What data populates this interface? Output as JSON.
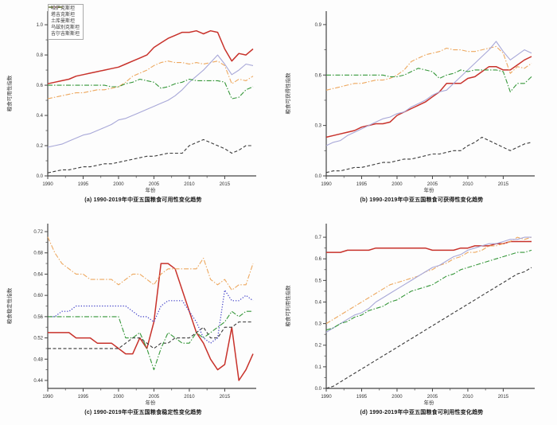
{
  "page": {
    "background": "#fdfdfd"
  },
  "colors": {
    "kazakhstan_red": "#c8322b",
    "tajikistan_black": "#3a3a3a",
    "turkmenistan_orange": "#eda85f",
    "uzbekistan_lavender": "#a8a8d8",
    "uzbekistan_dotted_blue": "#4040c8",
    "kyrgyzstan_green": "#36973a"
  },
  "legend": {
    "entries": [
      {
        "label": "哈萨克斯坦",
        "color": "#c8322b",
        "dash": "solid",
        "width": 1.5
      },
      {
        "label": "塔吉克斯坦",
        "color": "#3a3a3a",
        "dash": "dashed",
        "width": 1.1
      },
      {
        "label": "土库曼斯坦",
        "color": "#eda85f",
        "dash": "dashdot",
        "width": 1.1
      },
      {
        "label": "乌兹别克斯坦",
        "color": "#a8a8d8",
        "dash": "solid",
        "width": 1.1
      },
      {
        "label": "吉尔吉斯斯坦",
        "color": "#36973a",
        "dash": "dashdot",
        "width": 1.1
      }
    ]
  },
  "chart_data": [
    {
      "type": "line",
      "caption": "(a) 1990-2019年中亚五国粮食可用性变化趋势",
      "ylabel": "粮食可用性指数",
      "xlabel": "年份",
      "x_start": 1990,
      "x_end": 2019,
      "xticks": [
        1990,
        1995,
        2000,
        2005,
        2010,
        2015
      ],
      "yticks": [
        0.0,
        0.2,
        0.4,
        0.6,
        0.8,
        1.0
      ],
      "ytick_labels": [
        "0.0",
        "0.2",
        "0.4",
        "0.6",
        "0.8",
        "1.0"
      ],
      "axis_ylim": [
        0,
        1.09
      ],
      "legend_position": "upper-left",
      "grid": false,
      "series": [
        {
          "name": "哈萨克斯坦",
          "color": "#c8322b",
          "dash": "solid",
          "width": 1.5,
          "values": [
            0.61,
            0.62,
            0.63,
            0.64,
            0.66,
            0.67,
            0.68,
            0.69,
            0.7,
            0.71,
            0.72,
            0.74,
            0.76,
            0.78,
            0.8,
            0.85,
            0.88,
            0.91,
            0.93,
            0.95,
            0.95,
            0.96,
            0.94,
            0.96,
            0.95,
            0.84,
            0.76,
            0.81,
            0.8,
            0.84
          ]
        },
        {
          "name": "塔吉克斯坦",
          "color": "#3a3a3a",
          "dash": "dashed",
          "width": 1.1,
          "values": [
            0.02,
            0.03,
            0.04,
            0.04,
            0.05,
            0.06,
            0.06,
            0.07,
            0.08,
            0.08,
            0.09,
            0.1,
            0.11,
            0.12,
            0.13,
            0.13,
            0.14,
            0.15,
            0.15,
            0.15,
            0.2,
            0.22,
            0.24,
            0.22,
            0.2,
            0.18,
            0.15,
            0.17,
            0.2,
            0.2
          ]
        },
        {
          "name": "土库曼斯坦",
          "color": "#eda85f",
          "dash": "dashdot",
          "width": 1.1,
          "values": [
            0.51,
            0.52,
            0.53,
            0.54,
            0.55,
            0.55,
            0.56,
            0.57,
            0.57,
            0.58,
            0.59,
            0.62,
            0.66,
            0.68,
            0.7,
            0.73,
            0.75,
            0.76,
            0.75,
            0.75,
            0.74,
            0.75,
            0.74,
            0.75,
            0.76,
            0.73,
            0.61,
            0.64,
            0.63,
            0.66
          ]
        },
        {
          "name": "乌兹别克斯坦",
          "color": "#a8a8d8",
          "dash": "solid",
          "width": 1.1,
          "values": [
            0.19,
            0.2,
            0.21,
            0.23,
            0.25,
            0.27,
            0.28,
            0.3,
            0.32,
            0.34,
            0.37,
            0.38,
            0.4,
            0.42,
            0.44,
            0.46,
            0.48,
            0.5,
            0.53,
            0.57,
            0.62,
            0.66,
            0.7,
            0.75,
            0.8,
            0.74,
            0.67,
            0.7,
            0.74,
            0.73
          ]
        },
        {
          "name": "吉尔吉斯斯坦",
          "color": "#36973a",
          "dash": "dashdot",
          "width": 1.1,
          "values": [
            0.6,
            0.6,
            0.6,
            0.6,
            0.6,
            0.6,
            0.6,
            0.6,
            0.6,
            0.59,
            0.59,
            0.61,
            0.62,
            0.64,
            0.63,
            0.62,
            0.58,
            0.59,
            0.61,
            0.62,
            0.64,
            0.63,
            0.63,
            0.63,
            0.63,
            0.62,
            0.51,
            0.52,
            0.57,
            0.59
          ]
        }
      ]
    },
    {
      "type": "line",
      "caption": "(b) 1990-2019年中亚五国粮食可获得性变化趋势",
      "ylabel": "粮食可获得性指数",
      "xlabel": "年份",
      "x_start": 1990,
      "x_end": 2019,
      "xticks": [
        1990,
        1995,
        2000,
        2005,
        2010,
        2015
      ],
      "yticks": [
        0.0,
        0.3,
        0.6,
        0.9
      ],
      "ytick_labels": [
        "0.0",
        "0.3",
        "0.6",
        "0.9"
      ],
      "axis_ylim": [
        0,
        0.98
      ],
      "grid": false,
      "series": [
        {
          "name": "哈萨克斯坦",
          "color": "#c8322b",
          "dash": "solid",
          "width": 1.5,
          "values": [
            0.23,
            0.24,
            0.25,
            0.26,
            0.27,
            0.29,
            0.3,
            0.31,
            0.31,
            0.32,
            0.36,
            0.38,
            0.4,
            0.42,
            0.44,
            0.47,
            0.5,
            0.55,
            0.55,
            0.55,
            0.58,
            0.59,
            0.62,
            0.65,
            0.65,
            0.63,
            0.63,
            0.66,
            0.69,
            0.71
          ]
        },
        {
          "name": "塔吉克斯坦",
          "color": "#3a3a3a",
          "dash": "dashed",
          "width": 1.1,
          "values": [
            0.02,
            0.03,
            0.03,
            0.04,
            0.05,
            0.05,
            0.06,
            0.07,
            0.08,
            0.08,
            0.09,
            0.1,
            0.1,
            0.11,
            0.12,
            0.13,
            0.13,
            0.14,
            0.15,
            0.15,
            0.18,
            0.2,
            0.23,
            0.21,
            0.19,
            0.17,
            0.15,
            0.17,
            0.19,
            0.2
          ]
        },
        {
          "name": "土库曼斯坦",
          "color": "#eda85f",
          "dash": "dashdot",
          "width": 1.1,
          "values": [
            0.51,
            0.52,
            0.53,
            0.54,
            0.55,
            0.55,
            0.56,
            0.57,
            0.57,
            0.58,
            0.6,
            0.63,
            0.68,
            0.7,
            0.72,
            0.73,
            0.74,
            0.76,
            0.75,
            0.75,
            0.74,
            0.74,
            0.75,
            0.76,
            0.77,
            0.73,
            0.61,
            0.65,
            0.64,
            0.67
          ]
        },
        {
          "name": "乌兹别克斯坦",
          "color": "#a8a8d8",
          "dash": "solid",
          "width": 1.1,
          "values": [
            0.18,
            0.2,
            0.21,
            0.24,
            0.26,
            0.28,
            0.3,
            0.32,
            0.34,
            0.35,
            0.37,
            0.38,
            0.41,
            0.43,
            0.45,
            0.48,
            0.5,
            0.51,
            0.55,
            0.59,
            0.63,
            0.67,
            0.71,
            0.75,
            0.8,
            0.74,
            0.69,
            0.72,
            0.75,
            0.73
          ]
        },
        {
          "name": "吉尔吉斯斯坦",
          "color": "#36973a",
          "dash": "dashdot",
          "width": 1.1,
          "values": [
            0.6,
            0.6,
            0.6,
            0.6,
            0.6,
            0.6,
            0.6,
            0.6,
            0.6,
            0.59,
            0.59,
            0.6,
            0.62,
            0.64,
            0.63,
            0.62,
            0.58,
            0.6,
            0.61,
            0.63,
            0.62,
            0.63,
            0.63,
            0.63,
            0.63,
            0.62,
            0.5,
            0.55,
            0.55,
            0.59
          ]
        }
      ]
    },
    {
      "type": "line",
      "caption": "(c) 1990-2019年中亚五国粮食稳定性变化趋势",
      "ylabel": "粮食稳定性指数",
      "xlabel": "年份",
      "x_start": 1990,
      "x_end": 2019,
      "xticks": [
        1990,
        1995,
        2000,
        2005,
        2010,
        2015
      ],
      "yticks": [
        0.44,
        0.48,
        0.52,
        0.56,
        0.6,
        0.64,
        0.68,
        0.72
      ],
      "ytick_labels": [
        "0.44",
        "0.48",
        "0.52",
        "0.56",
        "0.60",
        "0.64",
        "0.68",
        "0.72"
      ],
      "axis_ylim": [
        0.425,
        0.735
      ],
      "grid": false,
      "series": [
        {
          "name": "哈萨克斯坦",
          "color": "#c8322b",
          "dash": "solid",
          "width": 1.5,
          "values": [
            0.53,
            0.53,
            0.53,
            0.53,
            0.52,
            0.52,
            0.52,
            0.51,
            0.51,
            0.51,
            0.5,
            0.49,
            0.49,
            0.52,
            0.5,
            0.55,
            0.66,
            0.66,
            0.65,
            0.61,
            0.57,
            0.53,
            0.51,
            0.48,
            0.46,
            0.47,
            0.54,
            0.44,
            0.46,
            0.49
          ]
        },
        {
          "name": "塔吉克斯坦",
          "color": "#3a3a3a",
          "dash": "dashed",
          "width": 1.1,
          "values": [
            0.5,
            0.5,
            0.5,
            0.5,
            0.5,
            0.5,
            0.5,
            0.5,
            0.5,
            0.5,
            0.5,
            0.51,
            0.52,
            0.52,
            0.51,
            0.5,
            0.51,
            0.51,
            0.52,
            0.52,
            0.52,
            0.53,
            0.54,
            0.52,
            0.52,
            0.54,
            0.54,
            0.55,
            0.55,
            0.55
          ]
        },
        {
          "name": "土库曼斯坦",
          "color": "#eda85f",
          "dash": "dashdot",
          "width": 1.1,
          "values": [
            0.71,
            0.68,
            0.66,
            0.65,
            0.64,
            0.64,
            0.63,
            0.63,
            0.63,
            0.63,
            0.62,
            0.63,
            0.64,
            0.64,
            0.63,
            0.62,
            0.64,
            0.65,
            0.65,
            0.65,
            0.65,
            0.65,
            0.67,
            0.63,
            0.62,
            0.63,
            0.61,
            0.62,
            0.62,
            0.66
          ]
        },
        {
          "name": "乌兹别克斯坦",
          "color": "#4040c8",
          "dash": "dotted",
          "width": 1.2,
          "values": [
            0.56,
            0.56,
            0.57,
            0.57,
            0.58,
            0.58,
            0.58,
            0.58,
            0.58,
            0.58,
            0.58,
            0.58,
            0.57,
            0.56,
            0.56,
            0.55,
            0.58,
            0.59,
            0.59,
            0.59,
            0.57,
            0.55,
            0.52,
            0.51,
            0.52,
            0.61,
            0.59,
            0.59,
            0.6,
            0.59
          ]
        },
        {
          "name": "吉尔吉斯斯坦",
          "color": "#36973a",
          "dash": "dashdot",
          "width": 1.1,
          "values": [
            0.56,
            0.56,
            0.56,
            0.56,
            0.56,
            0.56,
            0.56,
            0.56,
            0.56,
            0.56,
            0.56,
            0.52,
            0.52,
            0.53,
            0.5,
            0.46,
            0.5,
            0.53,
            0.52,
            0.51,
            0.51,
            0.53,
            0.52,
            0.53,
            0.54,
            0.55,
            0.57,
            0.56,
            0.57,
            0.57
          ]
        }
      ]
    },
    {
      "type": "line",
      "caption": "(d) 1990-2019年中亚五国粮食可利用性变化趋势",
      "ylabel": "粮食可利用性指数",
      "xlabel": "年份",
      "x_start": 1990,
      "x_end": 2019,
      "xticks": [
        1990,
        1995,
        2000,
        2005,
        2010,
        2015
      ],
      "yticks": [
        0.0,
        0.1,
        0.2,
        0.3,
        0.4,
        0.5,
        0.6,
        0.7
      ],
      "ytick_labels": [
        "0.0",
        "0.1",
        "0.2",
        "0.3",
        "0.4",
        "0.5",
        "0.6",
        "0.7"
      ],
      "axis_ylim": [
        0,
        0.763
      ],
      "grid": false,
      "series": [
        {
          "name": "哈萨克斯坦",
          "color": "#c8322b",
          "dash": "solid",
          "width": 1.5,
          "values": [
            0.63,
            0.63,
            0.63,
            0.64,
            0.64,
            0.64,
            0.64,
            0.65,
            0.65,
            0.65,
            0.65,
            0.65,
            0.65,
            0.65,
            0.65,
            0.64,
            0.64,
            0.64,
            0.64,
            0.65,
            0.65,
            0.66,
            0.66,
            0.66,
            0.67,
            0.67,
            0.68,
            0.68,
            0.68,
            0.68
          ]
        },
        {
          "name": "塔吉克斯坦",
          "color": "#3a3a3a",
          "dash": "dashed",
          "width": 1.1,
          "values": [
            0.0,
            0.01,
            0.03,
            0.05,
            0.07,
            0.09,
            0.11,
            0.13,
            0.15,
            0.17,
            0.19,
            0.21,
            0.23,
            0.25,
            0.27,
            0.29,
            0.31,
            0.33,
            0.35,
            0.37,
            0.39,
            0.41,
            0.43,
            0.45,
            0.47,
            0.49,
            0.51,
            0.53,
            0.54,
            0.56
          ]
        },
        {
          "name": "土库曼斯坦",
          "color": "#eda85f",
          "dash": "dashdot",
          "width": 1.1,
          "values": [
            0.3,
            0.32,
            0.34,
            0.36,
            0.38,
            0.4,
            0.42,
            0.44,
            0.46,
            0.48,
            0.49,
            0.5,
            0.51,
            0.52,
            0.54,
            0.55,
            0.57,
            0.58,
            0.6,
            0.61,
            0.63,
            0.63,
            0.64,
            0.66,
            0.66,
            0.67,
            0.68,
            0.7,
            0.69,
            0.7
          ]
        },
        {
          "name": "乌兹别克斯坦",
          "color": "#a8a8d8",
          "dash": "solid",
          "width": 1.1,
          "values": [
            0.26,
            0.28,
            0.3,
            0.32,
            0.34,
            0.35,
            0.37,
            0.4,
            0.42,
            0.44,
            0.46,
            0.48,
            0.5,
            0.52,
            0.54,
            0.56,
            0.57,
            0.59,
            0.61,
            0.62,
            0.64,
            0.65,
            0.66,
            0.67,
            0.67,
            0.68,
            0.69,
            0.69,
            0.7,
            0.7
          ]
        },
        {
          "name": "吉尔吉斯斯坦",
          "color": "#36973a",
          "dash": "dashdot",
          "width": 1.1,
          "values": [
            0.27,
            0.28,
            0.3,
            0.31,
            0.33,
            0.34,
            0.36,
            0.37,
            0.38,
            0.4,
            0.41,
            0.43,
            0.45,
            0.46,
            0.47,
            0.48,
            0.5,
            0.52,
            0.53,
            0.55,
            0.56,
            0.57,
            0.58,
            0.59,
            0.6,
            0.61,
            0.62,
            0.63,
            0.63,
            0.64
          ]
        }
      ]
    }
  ]
}
